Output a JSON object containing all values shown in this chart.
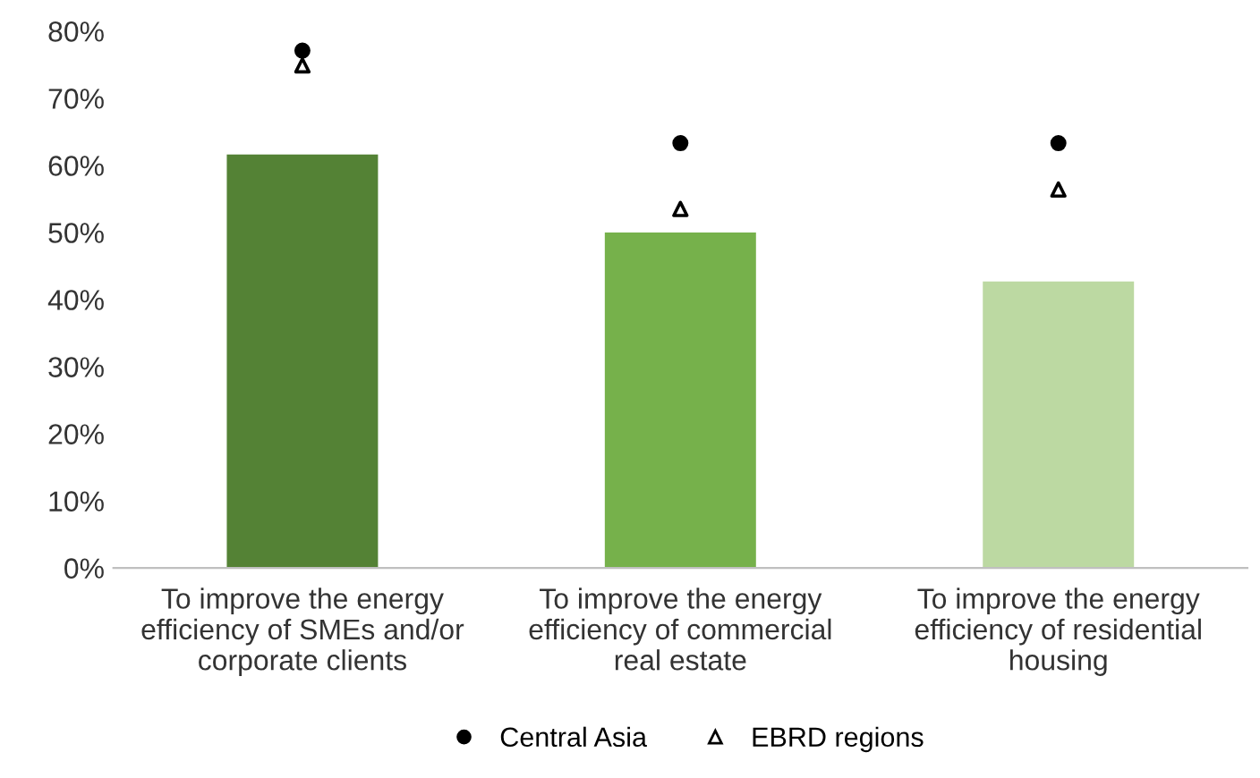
{
  "chart_data": {
    "type": "bar",
    "categories": [
      "To improve the energy\nefficiency of SMEs and/or\ncorporate clients",
      "To improve the energy\nefficiency of commercial\nreal estate",
      "To improve the energy\nefficiency of residential\nhousing"
    ],
    "series": [
      {
        "values": [
          61.6,
          50.0,
          42.7
        ],
        "colors": [
          "#548235",
          "#76b14b",
          "#bcd9a2"
        ]
      },
      {
        "type": "scatter",
        "name": "Central Asia",
        "color": "#000000",
        "marker": "circle",
        "values": [
          77.1,
          63.3,
          63.3
        ]
      },
      {
        "type": "scatter",
        "name": "EBRD regions",
        "color": "#000000",
        "marker": "triangle",
        "values": [
          74.9,
          53.5,
          56.4
        ]
      }
    ],
    "ylim": [
      0,
      80
    ],
    "yticks": [
      {
        "value": 0,
        "label": "0%"
      },
      {
        "value": 10,
        "label": "10%"
      },
      {
        "value": 20,
        "label": "20%"
      },
      {
        "value": 30,
        "label": "30%"
      },
      {
        "value": 40,
        "label": "40%"
      },
      {
        "value": 50,
        "label": "50%"
      },
      {
        "value": 60,
        "label": "60%"
      },
      {
        "value": 70,
        "label": "70%"
      },
      {
        "value": 80,
        "label": "80%"
      }
    ],
    "grid": false,
    "legend": "bottom"
  }
}
